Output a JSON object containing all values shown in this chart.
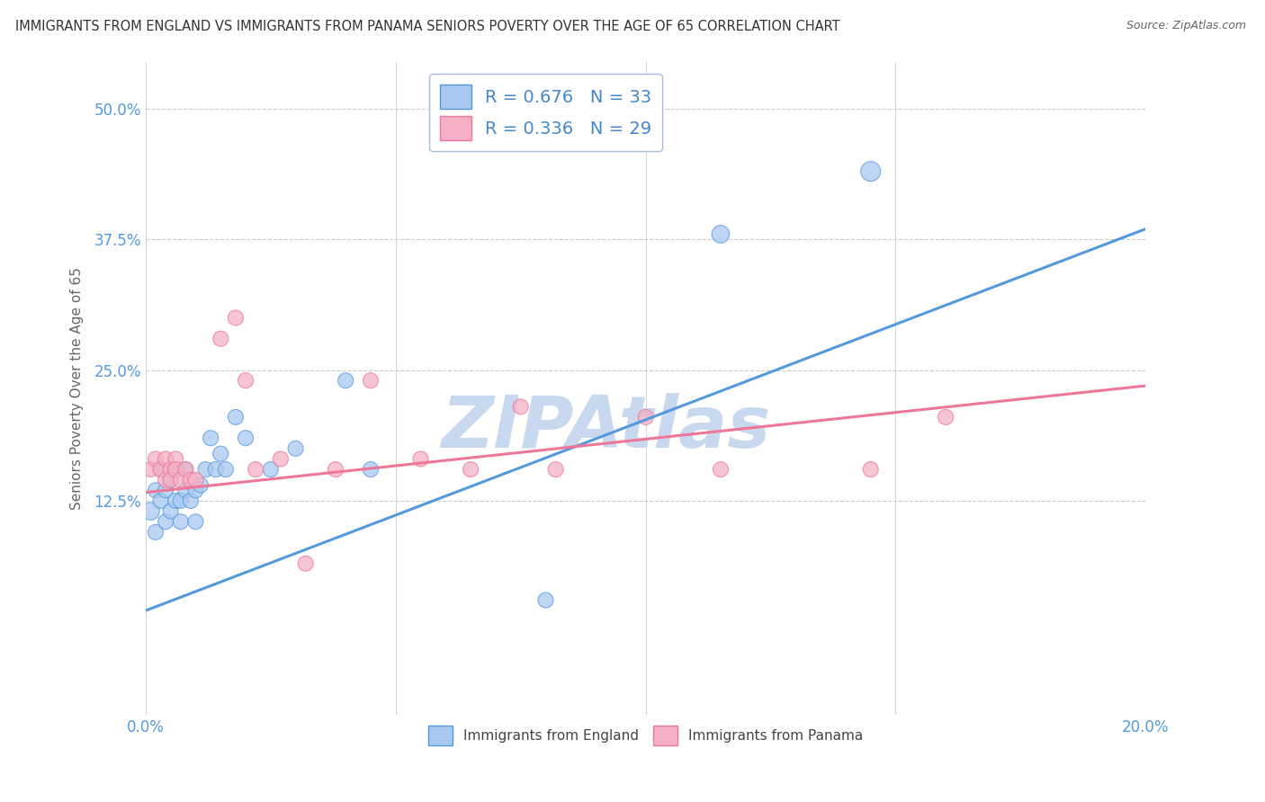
{
  "title": "IMMIGRANTS FROM ENGLAND VS IMMIGRANTS FROM PANAMA SENIORS POVERTY OVER THE AGE OF 65 CORRELATION CHART",
  "source": "Source: ZipAtlas.com",
  "ylabel": "Seniors Poverty Over the Age of 65",
  "xlim": [
    0.0,
    0.2
  ],
  "ylim": [
    -0.08,
    0.545
  ],
  "yticks": [
    0.125,
    0.25,
    0.375,
    0.5
  ],
  "ytick_labels": [
    "12.5%",
    "25.0%",
    "37.5%",
    "50.0%"
  ],
  "xticks": [
    0.0,
    0.05,
    0.1,
    0.15,
    0.2
  ],
  "xtick_labels": [
    "0.0%",
    "",
    "",
    "",
    "20.0%"
  ],
  "england_R": 0.676,
  "england_N": 33,
  "panama_R": 0.336,
  "panama_N": 29,
  "england_color": "#A8C8F0",
  "panama_color": "#F5B0C5",
  "england_line_color": "#5599DD",
  "panama_line_color": "#EE7799",
  "background_color": "#FFFFFF",
  "watermark": "ZIPAtlas",
  "watermark_color": "#C8D8EE",
  "grid_color": "#CCCCCC",
  "england_scatter_x": [
    0.001,
    0.002,
    0.002,
    0.003,
    0.003,
    0.004,
    0.004,
    0.005,
    0.005,
    0.006,
    0.006,
    0.007,
    0.007,
    0.008,
    0.008,
    0.009,
    0.01,
    0.01,
    0.011,
    0.012,
    0.013,
    0.014,
    0.015,
    0.016,
    0.018,
    0.02,
    0.025,
    0.03,
    0.04,
    0.045,
    0.08,
    0.115,
    0.145
  ],
  "england_scatter_y": [
    0.115,
    0.095,
    0.135,
    0.125,
    0.155,
    0.105,
    0.135,
    0.115,
    0.145,
    0.125,
    0.155,
    0.105,
    0.125,
    0.135,
    0.155,
    0.125,
    0.135,
    0.105,
    0.14,
    0.155,
    0.185,
    0.155,
    0.17,
    0.155,
    0.205,
    0.185,
    0.155,
    0.175,
    0.24,
    0.155,
    0.03,
    0.38,
    0.44
  ],
  "panama_scatter_x": [
    0.001,
    0.002,
    0.003,
    0.004,
    0.004,
    0.005,
    0.005,
    0.006,
    0.006,
    0.007,
    0.008,
    0.009,
    0.01,
    0.015,
    0.018,
    0.02,
    0.022,
    0.027,
    0.032,
    0.038,
    0.045,
    0.055,
    0.065,
    0.075,
    0.082,
    0.1,
    0.115,
    0.145,
    0.16
  ],
  "panama_scatter_y": [
    0.155,
    0.165,
    0.155,
    0.145,
    0.165,
    0.155,
    0.145,
    0.165,
    0.155,
    0.145,
    0.155,
    0.145,
    0.145,
    0.28,
    0.3,
    0.24,
    0.155,
    0.165,
    0.065,
    0.155,
    0.24,
    0.165,
    0.155,
    0.215,
    0.155,
    0.205,
    0.155,
    0.155,
    0.205
  ],
  "england_sizes": [
    200,
    150,
    150,
    150,
    150,
    150,
    150,
    150,
    150,
    150,
    150,
    150,
    150,
    150,
    150,
    150,
    150,
    150,
    150,
    150,
    150,
    150,
    150,
    150,
    150,
    150,
    150,
    150,
    150,
    150,
    150,
    200,
    250
  ],
  "panama_sizes": [
    150,
    150,
    150,
    150,
    150,
    150,
    150,
    150,
    150,
    150,
    150,
    150,
    150,
    150,
    150,
    150,
    150,
    150,
    150,
    150,
    150,
    150,
    150,
    150,
    150,
    150,
    150,
    150,
    150
  ],
  "england_line_x": [
    0.0,
    0.2
  ],
  "england_line_y": [
    0.02,
    0.385
  ],
  "panama_line_x": [
    0.0,
    0.2
  ],
  "panama_line_y": [
    0.133,
    0.235
  ]
}
